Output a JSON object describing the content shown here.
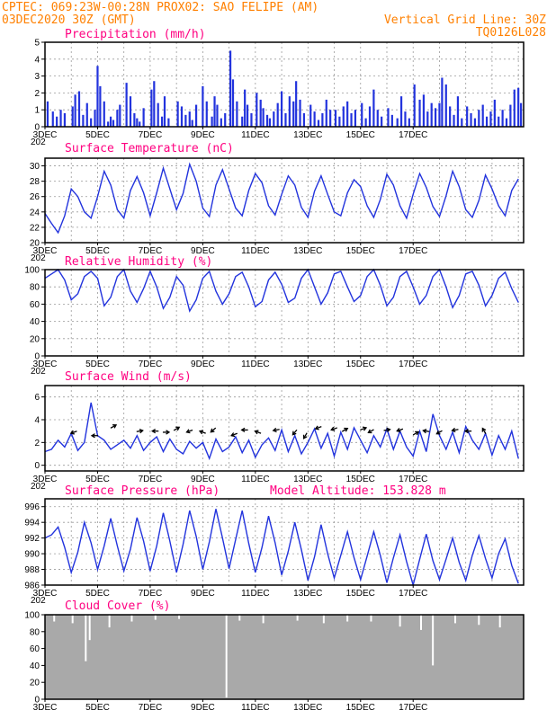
{
  "header": {
    "line1_left": "CPTEC:   069:23W-00:28N   PROX02: SAO FELIPE (AM)",
    "line2_left": "03DEC2020 30Z (GMT)",
    "line2_right": "Vertical Grid Line: 30Z",
    "line3_right": "TQ0126L028"
  },
  "model_altitude": "Model Altitude: 153.828 m",
  "colors": {
    "header": "#ff8000",
    "title": "#ff0080",
    "series": "#2233dd",
    "cloud": "#a9a9a9",
    "wind_arrow": "#000000"
  },
  "x_ticks": [
    "3DEC",
    "5DEC",
    "7DEC",
    "9DEC",
    "11DEC",
    "13DEC",
    "15DEC",
    "17DEC"
  ],
  "year_label": "202",
  "chart_data": [
    {
      "id": "precip",
      "type": "bar",
      "title": "Precipitation (mm/h)",
      "ylim": [
        0,
        5
      ],
      "yticks": [
        "0",
        "1",
        "2",
        "3",
        "4",
        "5"
      ],
      "x_unit": "days since 3DEC 00Z",
      "x": [
        0.1,
        0.3,
        0.45,
        0.6,
        0.75,
        1.05,
        1.15,
        1.3,
        1.45,
        1.6,
        1.75,
        1.9,
        2.0,
        2.1,
        2.25,
        2.4,
        2.5,
        2.6,
        2.75,
        2.85,
        3.1,
        3.25,
        3.4,
        3.5,
        3.6,
        3.75,
        4.05,
        4.15,
        4.3,
        4.45,
        4.55,
        4.7,
        5.05,
        5.2,
        5.35,
        5.5,
        5.6,
        5.75,
        6.0,
        6.15,
        6.35,
        6.45,
        6.55,
        6.7,
        6.85,
        7.05,
        7.15,
        7.3,
        7.5,
        7.6,
        7.7,
        7.85,
        8.05,
        8.2,
        8.3,
        8.45,
        8.55,
        8.7,
        8.85,
        9.0,
        9.15,
        9.3,
        9.45,
        9.55,
        9.7,
        9.85,
        10.1,
        10.25,
        10.4,
        10.55,
        10.7,
        10.85,
        11.05,
        11.2,
        11.35,
        11.5,
        11.65,
        11.8,
        12.05,
        12.2,
        12.35,
        12.5,
        12.65,
        12.8,
        13.05,
        13.2,
        13.4,
        13.55,
        13.7,
        13.85,
        14.05,
        14.25,
        14.4,
        14.55,
        14.7,
        14.85,
        15.0,
        15.1,
        15.25,
        15.4,
        15.55,
        15.7,
        15.85,
        16.05,
        16.2,
        16.35,
        16.5,
        16.65,
        16.8,
        16.95,
        17.1,
        17.25,
        17.4,
        17.55,
        17.7,
        17.85,
        18.0,
        18.1
      ],
      "values": [
        1.5,
        0.9,
        0.6,
        1.0,
        0.8,
        1.2,
        1.9,
        2.1,
        0.7,
        1.4,
        0.5,
        1.0,
        3.6,
        2.4,
        1.5,
        0.3,
        0.6,
        0.4,
        1.0,
        1.3,
        2.6,
        1.8,
        0.8,
        0.5,
        0.3,
        1.1,
        2.2,
        2.7,
        1.4,
        0.6,
        1.8,
        0.5,
        1.5,
        1.2,
        0.7,
        0.9,
        0.4,
        1.3,
        2.4,
        1.5,
        0.6,
        1.8,
        1.3,
        0.5,
        0.8,
        4.5,
        2.8,
        1.5,
        0.6,
        2.2,
        1.3,
        0.8,
        2.0,
        1.6,
        1.1,
        0.7,
        0.5,
        0.9,
        1.4,
        2.1,
        0.8,
        1.8,
        1.5,
        2.7,
        1.6,
        0.8,
        1.3,
        0.9,
        0.4,
        0.8,
        1.6,
        1.0,
        1.0,
        0.6,
        1.2,
        1.5,
        0.8,
        1.0,
        1.4,
        0.5,
        1.2,
        2.2,
        1.0,
        0.6,
        1.1,
        0.7,
        0.5,
        1.8,
        0.9,
        0.5,
        2.5,
        1.6,
        1.9,
        0.9,
        1.4,
        1.1,
        1.4,
        2.9,
        2.5,
        1.2,
        0.7,
        1.8,
        0.5,
        1.2,
        0.8,
        0.5,
        1.0,
        1.3,
        0.6,
        0.9,
        1.6,
        0.6,
        1.0,
        0.5,
        1.3,
        2.2,
        2.3,
        1.4
      ]
    },
    {
      "id": "temp",
      "type": "line",
      "title": "Surface Temperature (nC)",
      "ylim": [
        20,
        31
      ],
      "yticks": [
        "20",
        "22",
        "24",
        "26",
        "28",
        "30"
      ],
      "x_unit": "days since 3DEC 00Z",
      "x": [
        0.0,
        0.25,
        0.5,
        0.75,
        1.0,
        1.25,
        1.5,
        1.75,
        2.0,
        2.25,
        2.5,
        2.75,
        3.0,
        3.25,
        3.5,
        3.75,
        4.0,
        4.25,
        4.5,
        4.75,
        5.0,
        5.25,
        5.5,
        5.75,
        6.0,
        6.25,
        6.5,
        6.75,
        7.0,
        7.25,
        7.5,
        7.75,
        8.0,
        8.25,
        8.5,
        8.75,
        9.0,
        9.25,
        9.5,
        9.75,
        10.0,
        10.25,
        10.5,
        10.75,
        11.0,
        11.25,
        11.5,
        11.75,
        12.0,
        12.25,
        12.5,
        12.75,
        13.0,
        13.25,
        13.5,
        13.75,
        14.0,
        14.25,
        14.5,
        14.75,
        15.0,
        15.25,
        15.5,
        15.75,
        16.0,
        16.25,
        16.5,
        16.75,
        17.0,
        17.25,
        17.5,
        17.75,
        18.0
      ],
      "values": [
        23.8,
        22.5,
        21.3,
        23.5,
        27.0,
        26.0,
        24.0,
        23.2,
        26.0,
        29.3,
        27.5,
        24.3,
        23.2,
        26.8,
        28.6,
        26.5,
        23.5,
        26.5,
        29.7,
        27.0,
        24.3,
        26.4,
        30.2,
        28.0,
        24.5,
        23.4,
        27.5,
        29.5,
        27.0,
        24.5,
        23.5,
        26.8,
        29.0,
        27.8,
        24.8,
        23.6,
        26.3,
        28.7,
        27.5,
        24.6,
        23.3,
        26.7,
        28.7,
        26.3,
        24.0,
        23.5,
        26.5,
        28.2,
        27.3,
        24.8,
        23.3,
        25.6,
        28.9,
        27.5,
        24.8,
        23.2,
        26.3,
        29.0,
        27.2,
        24.7,
        23.4,
        26.1,
        29.3,
        27.3,
        24.3,
        23.3,
        25.5,
        28.8,
        27.0,
        24.8,
        23.5,
        26.8,
        28.3
      ]
    },
    {
      "id": "rh",
      "type": "line",
      "title": "Relative Humidity (%)",
      "ylim": [
        0,
        100
      ],
      "yticks": [
        "0",
        "20",
        "40",
        "60",
        "80",
        "100"
      ],
      "x_unit": "days since 3DEC 00Z",
      "x": [
        0.0,
        0.25,
        0.5,
        0.75,
        1.0,
        1.25,
        1.5,
        1.75,
        2.0,
        2.25,
        2.5,
        2.75,
        3.0,
        3.25,
        3.5,
        3.75,
        4.0,
        4.25,
        4.5,
        4.75,
        5.0,
        5.25,
        5.5,
        5.75,
        6.0,
        6.25,
        6.5,
        6.75,
        7.0,
        7.25,
        7.5,
        7.75,
        8.0,
        8.25,
        8.5,
        8.75,
        9.0,
        9.25,
        9.5,
        9.75,
        10.0,
        10.25,
        10.5,
        10.75,
        11.0,
        11.25,
        11.5,
        11.75,
        12.0,
        12.25,
        12.5,
        12.75,
        13.0,
        13.25,
        13.5,
        13.75,
        14.0,
        14.25,
        14.5,
        14.75,
        15.0,
        15.25,
        15.5,
        15.75,
        16.0,
        16.25,
        16.5,
        16.75,
        17.0,
        17.25,
        17.5,
        17.75,
        18.0
      ],
      "values": [
        90,
        95,
        100,
        88,
        65,
        72,
        92,
        98,
        90,
        58,
        68,
        92,
        100,
        75,
        62,
        78,
        98,
        80,
        55,
        68,
        92,
        82,
        52,
        65,
        90,
        98,
        75,
        60,
        72,
        92,
        97,
        80,
        57,
        63,
        88,
        97,
        83,
        62,
        67,
        90,
        100,
        80,
        60,
        73,
        95,
        98,
        80,
        63,
        70,
        92,
        100,
        82,
        58,
        68,
        92,
        98,
        80,
        60,
        70,
        92,
        100,
        80,
        56,
        70,
        95,
        98,
        82,
        58,
        70,
        90,
        97,
        78,
        62
      ]
    },
    {
      "id": "wind",
      "type": "line",
      "title": "Surface Wind (m/s)",
      "ylim": [
        -0.5,
        7
      ],
      "yticks": [
        "0",
        "2",
        "4",
        "6"
      ],
      "x_unit": "days since 3DEC 00Z",
      "x": [
        0.0,
        0.25,
        0.5,
        0.75,
        1.0,
        1.25,
        1.5,
        1.75,
        2.0,
        2.25,
        2.5,
        2.75,
        3.0,
        3.25,
        3.5,
        3.75,
        4.0,
        4.25,
        4.5,
        4.75,
        5.0,
        5.25,
        5.5,
        5.75,
        6.0,
        6.25,
        6.5,
        6.75,
        7.0,
        7.25,
        7.5,
        7.75,
        8.0,
        8.25,
        8.5,
        8.75,
        9.0,
        9.25,
        9.5,
        9.75,
        10.0,
        10.25,
        10.5,
        10.75,
        11.0,
        11.25,
        11.5,
        11.75,
        12.0,
        12.25,
        12.5,
        12.75,
        13.0,
        13.25,
        13.5,
        13.75,
        14.0,
        14.25,
        14.5,
        14.75,
        15.0,
        15.25,
        15.5,
        15.75,
        16.0,
        16.25,
        16.5,
        16.75,
        17.0,
        17.25,
        17.5,
        17.75,
        18.0
      ],
      "values": [
        1.2,
        1.4,
        2.2,
        1.6,
        2.8,
        1.3,
        2.0,
        5.5,
        2.6,
        2.2,
        1.4,
        1.8,
        2.2,
        1.5,
        2.6,
        1.3,
        2.0,
        2.5,
        1.2,
        2.3,
        1.4,
        1.0,
        2.1,
        1.5,
        2.0,
        0.6,
        2.3,
        1.2,
        1.6,
        2.5,
        1.1,
        2.2,
        0.7,
        1.8,
        2.4,
        1.3,
        3.1,
        1.2,
        2.6,
        1.0,
        2.0,
        3.2,
        1.5,
        2.8,
        0.8,
        2.9,
        1.4,
        3.3,
        2.2,
        1.1,
        2.6,
        1.6,
        3.2,
        1.4,
        3.0,
        1.6,
        0.8,
        3.0,
        1.2,
        4.5,
        2.6,
        1.4,
        2.9,
        1.1,
        3.4,
        2.2,
        1.4,
        2.8,
        0.9,
        2.6,
        1.4,
        3.0,
        0.6
      ]
    },
    {
      "id": "pressure",
      "type": "line",
      "title": "Surface Pressure (hPa)",
      "ylim": [
        986,
        997
      ],
      "yticks": [
        "986",
        "988",
        "990",
        "992",
        "994",
        "996"
      ],
      "x_unit": "days since 3DEC 00Z",
      "x": [
        0.0,
        0.25,
        0.5,
        0.75,
        1.0,
        1.25,
        1.5,
        1.75,
        2.0,
        2.25,
        2.5,
        2.75,
        3.0,
        3.25,
        3.5,
        3.75,
        4.0,
        4.25,
        4.5,
        4.75,
        5.0,
        5.25,
        5.5,
        5.75,
        6.0,
        6.25,
        6.5,
        6.75,
        7.0,
        7.25,
        7.5,
        7.75,
        8.0,
        8.25,
        8.5,
        8.75,
        9.0,
        9.25,
        9.5,
        9.75,
        10.0,
        10.25,
        10.5,
        10.75,
        11.0,
        11.25,
        11.5,
        11.75,
        12.0,
        12.25,
        12.5,
        12.75,
        13.0,
        13.25,
        13.5,
        13.75,
        14.0,
        14.25,
        14.5,
        14.75,
        15.0,
        15.25,
        15.5,
        15.75,
        16.0,
        16.25,
        16.5,
        16.75,
        17.0,
        17.25,
        17.5,
        17.75,
        18.0
      ],
      "values": [
        992.0,
        992.4,
        993.4,
        990.8,
        987.6,
        990.2,
        994.0,
        991.4,
        988.0,
        991.0,
        994.5,
        991.0,
        987.8,
        990.6,
        994.6,
        991.6,
        987.8,
        991.0,
        995.2,
        991.6,
        987.6,
        991.2,
        995.5,
        992.2,
        988.0,
        991.5,
        995.7,
        992.0,
        988.1,
        991.8,
        995.5,
        991.3,
        987.6,
        990.8,
        994.8,
        991.4,
        987.3,
        990.3,
        994.0,
        990.5,
        986.6,
        989.6,
        993.7,
        990.0,
        986.9,
        989.8,
        992.8,
        989.5,
        986.7,
        989.7,
        992.8,
        989.8,
        986.3,
        989.5,
        992.4,
        989.0,
        986.0,
        989.3,
        992.5,
        989.1,
        986.7,
        989.3,
        992.0,
        988.9,
        986.6,
        989.8,
        992.3,
        989.4,
        986.9,
        990.0,
        991.9,
        988.5,
        986.2
      ]
    },
    {
      "id": "cloud",
      "type": "bar",
      "title": "Cloud Cover (%)",
      "ylim": [
        0,
        100
      ],
      "yticks": [
        "0",
        "20",
        "40",
        "60",
        "80",
        "100"
      ],
      "x_unit": "days since 3DEC 00Z",
      "note": "near 100% most of the period with short drops",
      "drops": [
        {
          "x": 0.35,
          "value": 92
        },
        {
          "x": 1.05,
          "value": 90
        },
        {
          "x": 1.55,
          "value": 45
        },
        {
          "x": 1.7,
          "value": 70
        },
        {
          "x": 2.45,
          "value": 85
        },
        {
          "x": 3.3,
          "value": 92
        },
        {
          "x": 4.2,
          "value": 94
        },
        {
          "x": 5.1,
          "value": 95
        },
        {
          "x": 6.9,
          "value": 2
        },
        {
          "x": 7.4,
          "value": 93
        },
        {
          "x": 8.3,
          "value": 90
        },
        {
          "x": 9.6,
          "value": 93
        },
        {
          "x": 10.6,
          "value": 90
        },
        {
          "x": 11.5,
          "value": 92
        },
        {
          "x": 12.4,
          "value": 92
        },
        {
          "x": 13.5,
          "value": 86
        },
        {
          "x": 14.3,
          "value": 82
        },
        {
          "x": 14.75,
          "value": 40
        },
        {
          "x": 15.6,
          "value": 90
        },
        {
          "x": 16.5,
          "value": 88
        },
        {
          "x": 17.3,
          "value": 85
        }
      ]
    }
  ],
  "wind_vectors": {
    "x": [
      1.1,
      1.9,
      2.6,
      3.6,
      4.2,
      4.6,
      5.0,
      5.5,
      6.0,
      6.4,
      7.2,
      7.6,
      8.1,
      8.8,
      9.5,
      9.9,
      10.4,
      11.0,
      11.4,
      12.1,
      12.4,
      13.0,
      13.5,
      14.1,
      14.5,
      15.0,
      15.6,
      16.1,
      16.7
    ],
    "angle_deg": [
      200,
      180,
      30,
      10,
      180,
      0,
      30,
      200,
      160,
      220,
      200,
      180,
      160,
      190,
      230,
      240,
      200,
      200,
      30,
      20,
      210,
      10,
      200,
      30,
      170,
      210,
      190,
      180,
      120
    ],
    "y_level": [
      2.9,
      2.6,
      3.4,
      3.0,
      3.0,
      2.9,
      3.2,
      3.0,
      2.9,
      3.1,
      2.7,
      3.1,
      2.9,
      3.1,
      2.9,
      2.6,
      3.3,
      3.2,
      3.1,
      3.2,
      3.0,
      3.1,
      3.1,
      2.8,
      3.0,
      2.9,
      3.1,
      3.0,
      3.0
    ]
  }
}
